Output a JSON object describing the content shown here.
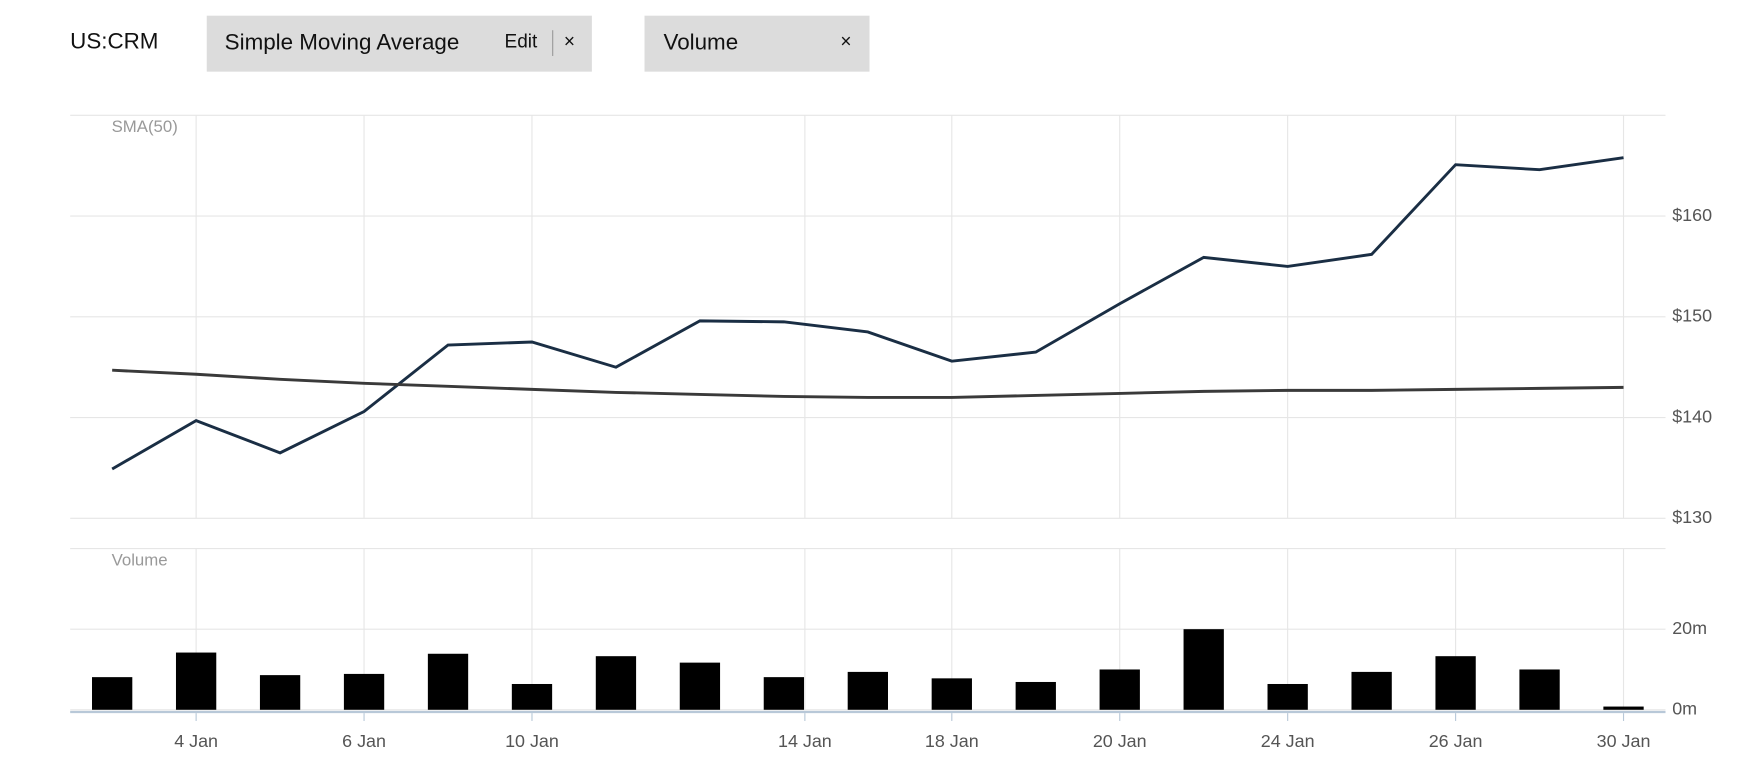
{
  "header": {
    "symbol": "US:CRM",
    "tabs": [
      {
        "label": "Simple Moving Average",
        "action": "Edit",
        "close": "×"
      },
      {
        "label": "Volume",
        "close": "×"
      }
    ]
  },
  "chart_data": [
    {
      "type": "line",
      "label": "SMA(50)",
      "grid": true,
      "xlim": [
        -0.5,
        18.5
      ],
      "ylim": [
        130,
        170
      ],
      "yticks": [
        {
          "value": 130,
          "label": "$130"
        },
        {
          "value": 140,
          "label": "$140"
        },
        {
          "value": 150,
          "label": "$150"
        },
        {
          "value": 160,
          "label": "$160"
        }
      ],
      "series": [
        {
          "color": "#1a2e44",
          "values": [
            134.9,
            139.7,
            136.5,
            140.6,
            147.2,
            147.5,
            145.0,
            149.6,
            149.5,
            148.5,
            145.6,
            146.5,
            151.3,
            155.9,
            155.0,
            156.2,
            165.1,
            164.6,
            165.8
          ]
        },
        {
          "color": "#3a3a3a",
          "values": [
            144.7,
            144.3,
            143.8,
            143.4,
            143.1,
            142.8,
            142.5,
            142.3,
            142.1,
            142.0,
            142.0,
            142.2,
            142.4,
            142.6,
            142.7,
            142.7,
            142.8,
            142.9,
            143.0
          ]
        }
      ]
    },
    {
      "type": "bar",
      "label": "Volume",
      "grid": true,
      "color": "#000000",
      "xlim": [
        -0.5,
        18.5
      ],
      "ylim": [
        0,
        40
      ],
      "xticks": [
        {
          "value": 1,
          "label": "4 Jan"
        },
        {
          "value": 3,
          "label": "6 Jan"
        },
        {
          "value": 5,
          "label": "10 Jan"
        },
        {
          "value": 8.25,
          "label": "14 Jan"
        },
        {
          "value": 10,
          "label": "18 Jan"
        },
        {
          "value": 12,
          "label": "20 Jan"
        },
        {
          "value": 14,
          "label": "24 Jan"
        },
        {
          "value": 16,
          "label": "26 Jan"
        },
        {
          "value": 18,
          "label": "30 Jan"
        }
      ],
      "yticks": [
        {
          "value": 0,
          "label": "0m"
        },
        {
          "value": 20,
          "label": "20m"
        }
      ],
      "values": [
        8.1,
        14.2,
        8.6,
        8.9,
        13.9,
        6.4,
        13.3,
        11.7,
        8.1,
        9.4,
        7.8,
        6.9,
        10.0,
        20.0,
        6.4,
        9.4,
        13.3,
        10.0,
        0.8
      ]
    }
  ]
}
